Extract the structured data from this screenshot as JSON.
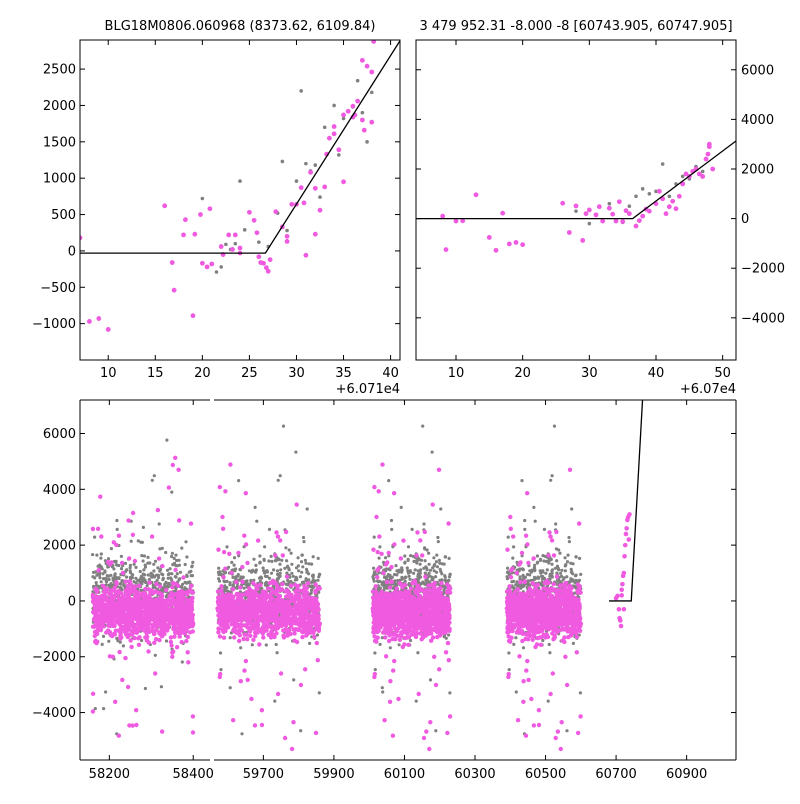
{
  "colors": {
    "primary": "#f05ae0",
    "secondary": "#808080",
    "model": "#000000"
  },
  "chart_data": [
    {
      "id": "top-left",
      "type": "scatter",
      "title": "BLG18M0806.060968 (8373.62, 6109.84)",
      "xlim": [
        7,
        41
      ],
      "ylim": [
        -1500,
        2900
      ],
      "xticks": [
        10,
        15,
        20,
        25,
        30,
        35,
        40
      ],
      "xticklabels": [
        "10",
        "15",
        "20",
        "25",
        "30",
        "35",
        "40"
      ],
      "yticks": [
        -1000,
        -500,
        0,
        500,
        1000,
        1500,
        2000,
        2500
      ],
      "yticklabels": [
        "−1000",
        "−500",
        "0",
        "500",
        "1000",
        "1500",
        "2000",
        "2500"
      ],
      "offset_label": "+6.071e4",
      "series": [
        {
          "color_key": "primary",
          "points": [
            [
              7,
              180
            ],
            [
              8,
              -970
            ],
            [
              9,
              -930
            ],
            [
              10,
              -1080
            ],
            [
              16,
              620
            ],
            [
              16.8,
              -160
            ],
            [
              17,
              -540
            ],
            [
              18,
              220
            ],
            [
              18.2,
              430
            ],
            [
              19,
              -890
            ],
            [
              19.2,
              230
            ],
            [
              19.8,
              500
            ],
            [
              20,
              -170
            ],
            [
              20.5,
              -220
            ],
            [
              20.8,
              580
            ],
            [
              21,
              -180
            ],
            [
              22,
              60
            ],
            [
              22.2,
              -50
            ],
            [
              22.8,
              220
            ],
            [
              23.2,
              20
            ],
            [
              23.5,
              220
            ],
            [
              24,
              40
            ],
            [
              24,
              -30
            ],
            [
              25,
              530
            ],
            [
              25.5,
              420
            ],
            [
              25.8,
              250
            ],
            [
              26,
              -80
            ],
            [
              26.2,
              -160
            ],
            [
              26.5,
              -170
            ],
            [
              26.8,
              -230
            ],
            [
              27,
              -280
            ],
            [
              27.2,
              -120
            ],
            [
              27.8,
              540
            ],
            [
              28.5,
              330
            ],
            [
              29,
              200
            ],
            [
              29,
              130
            ],
            [
              29.5,
              640
            ],
            [
              30,
              640
            ],
            [
              30.5,
              870
            ],
            [
              30.8,
              660
            ],
            [
              31,
              -60
            ],
            [
              31.5,
              1080
            ],
            [
              32,
              860
            ],
            [
              32,
              230
            ],
            [
              32.5,
              560
            ],
            [
              33,
              880
            ],
            [
              33.2,
              1330
            ],
            [
              33.5,
              1550
            ],
            [
              34,
              1610
            ],
            [
              34,
              1710
            ],
            [
              34.5,
              1390
            ],
            [
              35,
              950
            ],
            [
              35,
              1870
            ],
            [
              35.5,
              1920
            ],
            [
              36,
              1990
            ],
            [
              36,
              1840
            ],
            [
              36.2,
              1870
            ],
            [
              36.5,
              2060
            ],
            [
              37,
              1800
            ],
            [
              37,
              2620
            ],
            [
              37.2,
              1660
            ],
            [
              37.5,
              2540
            ],
            [
              38,
              1770
            ],
            [
              38,
              2460
            ],
            [
              38.2,
              2880
            ]
          ]
        },
        {
          "color_key": "secondary",
          "points": [
            [
              20,
              720
            ],
            [
              21,
              -180
            ],
            [
              21.5,
              -290
            ],
            [
              22,
              -220
            ],
            [
              22.5,
              90
            ],
            [
              23,
              20
            ],
            [
              23.5,
              100
            ],
            [
              24,
              960
            ],
            [
              24.5,
              290
            ],
            [
              26,
              120
            ],
            [
              27,
              60
            ],
            [
              28,
              520
            ],
            [
              28.5,
              1230
            ],
            [
              29,
              280
            ],
            [
              30,
              960
            ],
            [
              30.5,
              2200
            ],
            [
              31,
              1200
            ],
            [
              31.5,
              1100
            ],
            [
              32,
              1180
            ],
            [
              32.5,
              740
            ],
            [
              33,
              1700
            ],
            [
              34,
              2000
            ],
            [
              34.5,
              1320
            ],
            [
              35,
              1820
            ],
            [
              36,
              1980
            ],
            [
              36.5,
              2340
            ],
            [
              37,
              1900
            ],
            [
              37.5,
              1500
            ],
            [
              38,
              2180
            ]
          ]
        }
      ],
      "model": [
        [
          7,
          -30
        ],
        [
          26.7,
          -30
        ],
        [
          41,
          2890
        ]
      ]
    },
    {
      "id": "top-right",
      "type": "scatter",
      "title": "3 479 952.31 -8.000 -8 [60743.905, 60747.905]",
      "xlim": [
        4,
        52
      ],
      "ylim": [
        -5700,
        7200
      ],
      "xticks": [
        10,
        20,
        30,
        40,
        50
      ],
      "xticklabels": [
        "10",
        "20",
        "30",
        "40",
        "50"
      ],
      "yticks": [
        -4000,
        -2000,
        0,
        2000,
        4000,
        6000
      ],
      "yticklabels": [
        "−4000",
        "−2000",
        "0",
        "2000",
        "4000",
        "6000"
      ],
      "offset_label": "+6.07e4",
      "series": [
        {
          "color_key": "primary",
          "points": [
            [
              8,
              100
            ],
            [
              8.5,
              -1250
            ],
            [
              10,
              -100
            ],
            [
              11,
              -90
            ],
            [
              13,
              960
            ],
            [
              15,
              -760
            ],
            [
              16,
              -1280
            ],
            [
              17,
              220
            ],
            [
              18,
              -1020
            ],
            [
              19,
              -960
            ],
            [
              20,
              -1050
            ],
            [
              26,
              620
            ],
            [
              27,
              -560
            ],
            [
              28,
              510
            ],
            [
              29,
              -880
            ],
            [
              29.5,
              200
            ],
            [
              30,
              350
            ],
            [
              31,
              150
            ],
            [
              31.5,
              480
            ],
            [
              32,
              -100
            ],
            [
              33,
              420
            ],
            [
              33.5,
              180
            ],
            [
              34,
              -100
            ],
            [
              34.5,
              680
            ],
            [
              35,
              -120
            ],
            [
              35.5,
              320
            ],
            [
              36,
              200
            ],
            [
              37,
              -300
            ],
            [
              37.5,
              -80
            ],
            [
              38,
              100
            ],
            [
              38.5,
              380
            ],
            [
              39,
              300
            ],
            [
              40,
              600
            ],
            [
              40.5,
              1100
            ],
            [
              41,
              800
            ],
            [
              41.5,
              200
            ],
            [
              42,
              480
            ],
            [
              42.5,
              700
            ],
            [
              43,
              400
            ],
            [
              43.5,
              900
            ],
            [
              44,
              1400
            ],
            [
              44.5,
              1800
            ],
            [
              45,
              1700
            ],
            [
              45.5,
              1900
            ],
            [
              46,
              2000
            ],
            [
              46.5,
              1800
            ],
            [
              47,
              1700
            ],
            [
              47.5,
              2400
            ],
            [
              47.8,
              2600
            ],
            [
              48,
              2900
            ],
            [
              48,
              3000
            ],
            [
              48.5,
              2000
            ]
          ]
        },
        {
          "color_key": "secondary",
          "points": [
            [
              28,
              300
            ],
            [
              30,
              -200
            ],
            [
              33,
              600
            ],
            [
              35,
              -150
            ],
            [
              36,
              500
            ],
            [
              37,
              900
            ],
            [
              38,
              1200
            ],
            [
              39,
              1000
            ],
            [
              40,
              1100
            ],
            [
              41,
              2200
            ],
            [
              42,
              900
            ],
            [
              43,
              1400
            ],
            [
              44,
              1700
            ],
            [
              45,
              1600
            ],
            [
              46,
              2100
            ],
            [
              47,
              1900
            ]
          ]
        }
      ],
      "model": [
        [
          4,
          0
        ],
        [
          36.5,
          0
        ],
        [
          52,
          3130
        ]
      ]
    },
    {
      "id": "bottom",
      "type": "scatter",
      "xlim": [
        58130,
        61040
      ],
      "ylim": [
        -5700,
        7200
      ],
      "xticks": [
        58200,
        58400,
        59700,
        59900,
        60100,
        60300,
        60500,
        60700,
        60900
      ],
      "xticklabels": [
        "58200",
        "58400",
        "59700",
        "59900",
        "60100",
        "60300",
        "60500",
        "60700",
        "60900"
      ],
      "yticks": [
        -4000,
        -2000,
        0,
        2000,
        4000,
        6000
      ],
      "yticklabels": [
        "−4000",
        "−2000",
        "0",
        "2000",
        "4000",
        "6000"
      ],
      "break": {
        "from": 58440,
        "to": 59560
      },
      "seasons": [
        {
          "x": [
            58160,
            58400
          ],
          "count": 1800,
          "spread": 1400
        },
        {
          "x": [
            59570,
            59860
          ],
          "count": 1700,
          "spread": 1500
        },
        {
          "x": [
            60010,
            60230
          ],
          "count": 1800,
          "spread": 1500
        },
        {
          "x": [
            60390,
            60600
          ],
          "count": 1700,
          "spread": 1500
        }
      ],
      "rise_points": [
        [
          60700,
          100
        ],
        [
          60704,
          180
        ],
        [
          60708,
          -300
        ],
        [
          60710,
          -620
        ],
        [
          60712,
          -700
        ],
        [
          60714,
          -900
        ],
        [
          60716,
          400
        ],
        [
          60718,
          600
        ],
        [
          60720,
          900
        ],
        [
          60722,
          1000
        ],
        [
          60724,
          1600
        ],
        [
          60726,
          2000
        ],
        [
          60728,
          2400
        ],
        [
          60730,
          2600
        ],
        [
          60732,
          2900
        ],
        [
          60734,
          3000
        ],
        [
          60736,
          2200
        ],
        [
          60738,
          3100
        ],
        [
          60722,
          -300
        ],
        [
          60716,
          200
        ]
      ],
      "model": [
        [
          60680,
          0
        ],
        [
          60743,
          0
        ],
        [
          60775,
          7200
        ]
      ]
    }
  ]
}
